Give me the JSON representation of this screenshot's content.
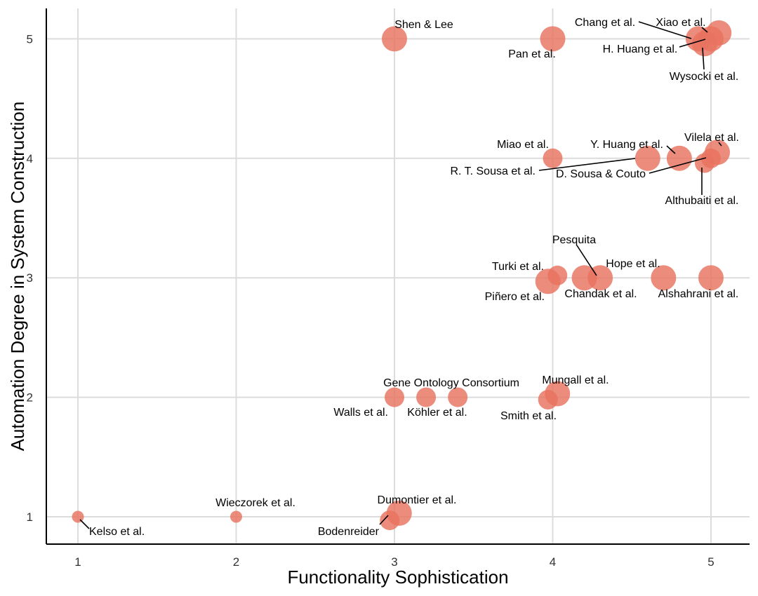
{
  "chart_data": {
    "type": "scatter",
    "xlabel": "Functionality Sophistication",
    "ylabel": "Automation Degree in System Construction",
    "xlim": [
      0.8,
      5.25
    ],
    "ylim": [
      0.65,
      5.25
    ],
    "xticks": [
      1,
      2,
      3,
      4,
      5
    ],
    "yticks": [
      1,
      2,
      3,
      4,
      5
    ],
    "grid": true,
    "point_color": "#e8735f",
    "points": [
      {
        "label": "Kelso et al.",
        "x": 1.0,
        "y": 1.0,
        "size": 1
      },
      {
        "label": "Wieczorek et al.",
        "x": 2.0,
        "y": 1.0,
        "size": 1
      },
      {
        "label": "Bodenreider",
        "x": 2.97,
        "y": 0.97,
        "size": 2
      },
      {
        "label": "Dumontier et al.",
        "x": 3.03,
        "y": 1.03,
        "size": 3
      },
      {
        "label": "Walls et al.",
        "x": 3.0,
        "y": 2.0,
        "size": 2
      },
      {
        "label": "Gene Ontology Consortium",
        "x": 3.2,
        "y": 2.0,
        "size": 2
      },
      {
        "label": "Köhler et al.",
        "x": 3.4,
        "y": 2.0,
        "size": 2
      },
      {
        "label": "Smith et al.",
        "x": 3.97,
        "y": 1.98,
        "size": 2
      },
      {
        "label": "Mungall et al.",
        "x": 4.03,
        "y": 2.03,
        "size": 3
      },
      {
        "label": "Piñero et al.",
        "x": 3.97,
        "y": 2.97,
        "size": 3
      },
      {
        "label": "Turki et al.",
        "x": 4.03,
        "y": 3.02,
        "size": 2
      },
      {
        "label": "Chandak et al.",
        "x": 4.2,
        "y": 3.0,
        "size": 3
      },
      {
        "label": "Pesquita",
        "x": 4.3,
        "y": 3.0,
        "size": 3
      },
      {
        "label": "Hope et al.",
        "x": 4.7,
        "y": 3.0,
        "size": 3
      },
      {
        "label": "Alshahrani et al.",
        "x": 5.0,
        "y": 3.0,
        "size": 3
      },
      {
        "label": "Miao et al.",
        "x": 4.0,
        "y": 4.0,
        "size": 2
      },
      {
        "label": "R. T. Sousa et al.",
        "x": 4.6,
        "y": 4.0,
        "size": 3
      },
      {
        "label": "Y. Huang et al.",
        "x": 4.8,
        "y": 4.0,
        "size": 3
      },
      {
        "label": "Althubaiti et al.",
        "x": 4.96,
        "y": 3.96,
        "size": 2
      },
      {
        "label": "D. Sousa & Couto",
        "x": 5.0,
        "y": 4.0,
        "size": 2
      },
      {
        "label": "Vilela et al.",
        "x": 5.04,
        "y": 4.05,
        "size": 3
      },
      {
        "label": "Shen & Lee",
        "x": 3.0,
        "y": 5.0,
        "size": 3
      },
      {
        "label": "Pan et al.",
        "x": 4.0,
        "y": 5.0,
        "size": 3
      },
      {
        "label": "Chang et al.",
        "x": 4.92,
        "y": 5.0,
        "size": 3
      },
      {
        "label": "Wysocki et al.",
        "x": 4.96,
        "y": 4.96,
        "size": 3
      },
      {
        "label": "H. Huang et al.",
        "x": 5.0,
        "y": 5.0,
        "size": 3
      },
      {
        "label": "Xiao et al.",
        "x": 5.05,
        "y": 5.05,
        "size": 3
      }
    ]
  }
}
